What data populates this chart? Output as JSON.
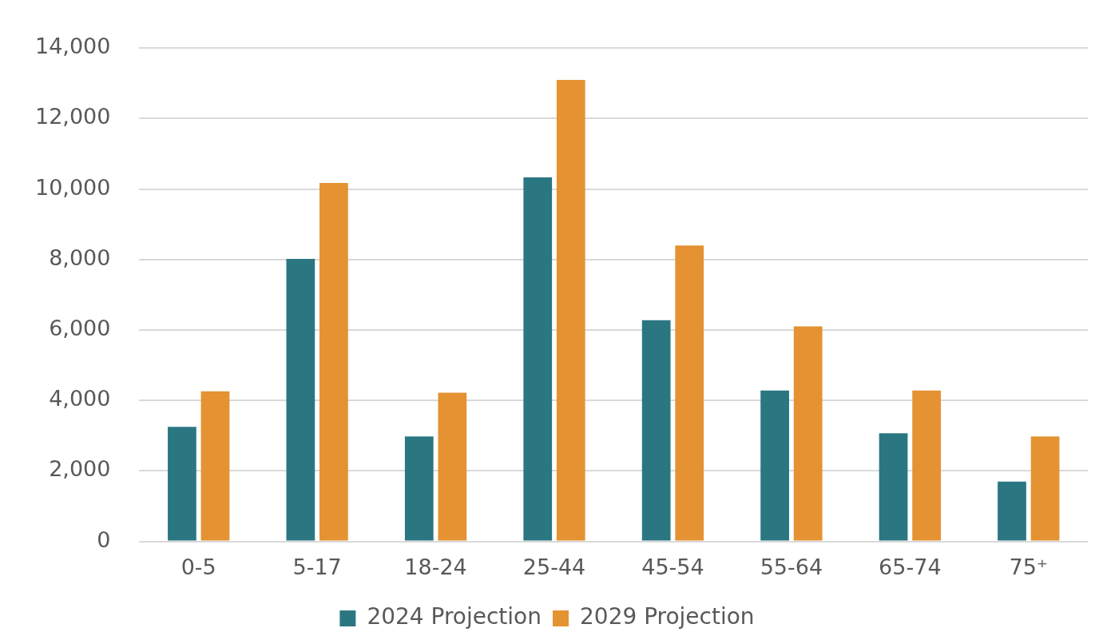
{
  "chart_data": {
    "type": "bar",
    "categories": [
      "0-5",
      "5-17",
      "18-24",
      "25-44",
      "45-54",
      "55-64",
      "65-74",
      "75⁺"
    ],
    "series": [
      {
        "name": "2024 Projection",
        "color": "#2a7782",
        "values": [
          3250,
          8020,
          2980,
          10330,
          6280,
          4280,
          3070,
          1700
        ]
      },
      {
        "name": "2029 Projection",
        "color": "#e49232",
        "values": [
          4260,
          10170,
          4220,
          13100,
          8400,
          6100,
          4280,
          2980
        ]
      }
    ],
    "ylim": [
      0,
      14000
    ],
    "yticks": [
      0,
      {
        "value": 2000,
        "label": "2,000"
      },
      {
        "value": 4000,
        "label": "4,000"
      },
      {
        "value": 6000,
        "label": "6,000"
      },
      {
        "value": 8000,
        "label": "8,000"
      },
      {
        "value": 10000,
        "label": "10,000"
      },
      {
        "value": 12000,
        "label": "12,000"
      },
      {
        "value": 14000,
        "label": "14,000"
      }
    ],
    "grid": "y",
    "legend": "bottom"
  }
}
